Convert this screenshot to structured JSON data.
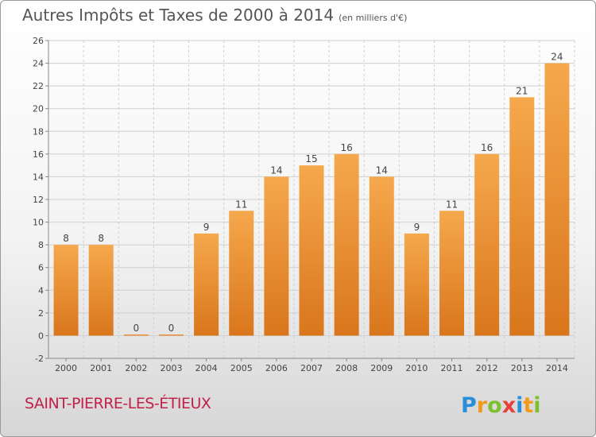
{
  "header": {
    "title": "Autres Impôts et Taxes de 2000 à 2014",
    "unit": "(en milliers d'€)"
  },
  "footer": {
    "commune": "SAINT-PIERRE-LES-ÉTIEUX",
    "logo_text": "Proxiti"
  },
  "colors": {
    "bar_light": "#f6a84c",
    "bar_dark": "#d9761c",
    "commune": "#c3204a",
    "grid": "#cfcfcf"
  },
  "chart_data": {
    "type": "bar",
    "title": "Autres Impôts et Taxes de 2000 à 2014",
    "subtitle": "(en milliers d'€)",
    "categories": [
      "2000",
      "2001",
      "2002",
      "2003",
      "2004",
      "2005",
      "2006",
      "2007",
      "2008",
      "2009",
      "2010",
      "2011",
      "2012",
      "2013",
      "2014"
    ],
    "values": [
      8,
      8,
      0,
      0,
      9,
      11,
      14,
      15,
      16,
      14,
      9,
      11,
      16,
      21,
      24
    ],
    "yticks": [
      -2,
      0,
      2,
      4,
      6,
      8,
      10,
      12,
      14,
      16,
      18,
      20,
      22,
      24,
      26
    ],
    "ylim": [
      -2,
      26
    ],
    "grid": true,
    "legend": "none"
  }
}
